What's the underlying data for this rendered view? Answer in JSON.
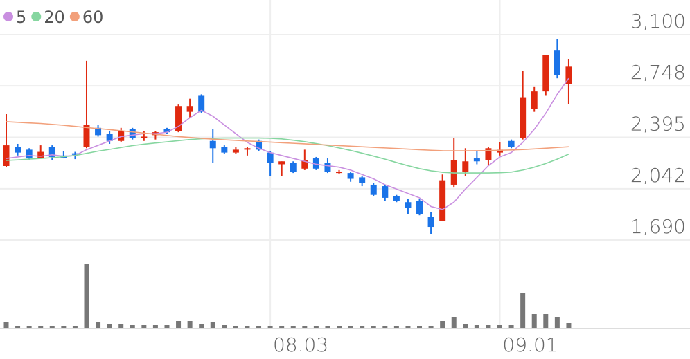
{
  "chart_data": {
    "type": "candlestick",
    "categories": [
      null,
      null,
      null,
      null,
      null,
      null,
      null,
      null,
      null,
      null,
      null,
      null,
      null,
      null,
      null,
      null,
      null,
      null,
      null,
      null,
      null,
      null,
      null,
      "08.03",
      null,
      null,
      null,
      null,
      null,
      null,
      null,
      null,
      null,
      null,
      null,
      null,
      null,
      null,
      null,
      null,
      null,
      null,
      null,
      "09.01",
      null,
      null,
      null,
      null,
      null,
      null
    ],
    "open": [
      2198,
      2330,
      2310,
      2255,
      2330,
      2270,
      2285,
      2330,
      2460,
      2420,
      2370,
      2450,
      2390,
      2410,
      2450,
      2440,
      2570,
      2680,
      2370,
      2330,
      2290,
      2310,
      2370,
      2290,
      2210,
      2220,
      2180,
      2250,
      2220,
      2150,
      2150,
      2120,
      2070,
      2060,
      1990,
      1950,
      1960,
      1850,
      1820,
      2070,
      2160,
      2250,
      2240,
      2290,
      2370,
      2390,
      2590,
      2710,
      2990,
      2760
    ],
    "high": [
      2554,
      2350,
      2320,
      2340,
      2340,
      2300,
      2295,
      2920,
      2480,
      2440,
      2460,
      2460,
      2440,
      2440,
      2460,
      2620,
      2660,
      2690,
      2450,
      2340,
      2330,
      2330,
      2380,
      2300,
      2230,
      2230,
      2310,
      2260,
      2250,
      2170,
      2160,
      2130,
      2080,
      2070,
      2000,
      1970,
      1970,
      1880,
      2140,
      2390,
      2320,
      2300,
      2330,
      2360,
      2380,
      2850,
      2740,
      2960,
      3070,
      2934
    ],
    "low": [
      2189,
      2270,
      2240,
      2250,
      2240,
      2250,
      2245,
      2320,
      2400,
      2350,
      2360,
      2380,
      2370,
      2380,
      2420,
      2430,
      2530,
      2560,
      2220,
      2280,
      2280,
      2270,
      2300,
      2130,
      2130,
      2150,
      2170,
      2170,
      2150,
      2145,
      2090,
      2060,
      1990,
      1960,
      1950,
      1870,
      1860,
      1730,
      1820,
      2050,
      2130,
      2210,
      2200,
      2270,
      2320,
      2380,
      2570,
      2680,
      2800,
      2625
    ],
    "close": [
      2340,
      2290,
      2250,
      2295,
      2260,
      2255,
      2275,
      2480,
      2410,
      2370,
      2440,
      2390,
      2400,
      2430,
      2430,
      2610,
      2610,
      2570,
      2320,
      2290,
      2310,
      2320,
      2310,
      2220,
      2230,
      2160,
      2240,
      2180,
      2160,
      2160,
      2110,
      2080,
      2000,
      1980,
      1960,
      1910,
      1870,
      1780,
      2100,
      2240,
      2230,
      2230,
      2320,
      2310,
      2330,
      2670,
      2710,
      2960,
      2820,
      2880
    ],
    "volume": [
      8,
      3,
      3,
      3,
      3,
      3,
      3,
      93,
      8,
      5,
      5,
      4,
      4,
      4,
      4,
      10,
      10,
      6,
      9,
      4,
      3,
      3,
      3,
      3,
      3,
      3,
      3,
      3,
      3,
      3,
      3,
      3,
      3,
      3,
      3,
      3,
      3,
      3,
      10,
      15,
      5,
      4,
      4,
      4,
      4,
      50,
      20,
      20,
      15,
      7
    ],
    "up_color": "#e0290f",
    "down_color": "#1a73e8",
    "volume_color": "#777777",
    "series": [
      {
        "name": "5",
        "color": "#c98fe0",
        "values": [
          2250,
          2260,
          2270,
          2265,
          2275,
          2265,
          2270,
          2310,
          2340,
          2370,
          2400,
          2410,
          2420,
          2420,
          2430,
          2470,
          2530,
          2580,
          2540,
          2480,
          2420,
          2360,
          2320,
          2290,
          2270,
          2250,
          2230,
          2210,
          2200,
          2190,
          2170,
          2140,
          2110,
          2070,
          2040,
          2010,
          1980,
          1920,
          1900,
          1950,
          2040,
          2120,
          2200,
          2260,
          2290,
          2360,
          2450,
          2560,
          2690,
          2800
        ]
      },
      {
        "name": "20",
        "color": "#86d6a0",
        "values": [
          2236,
          2240,
          2245,
          2250,
          2255,
          2262,
          2270,
          2285,
          2300,
          2312,
          2325,
          2338,
          2348,
          2356,
          2364,
          2372,
          2380,
          2385,
          2388,
          2390,
          2390,
          2390,
          2390,
          2388,
          2384,
          2375,
          2365,
          2352,
          2338,
          2322,
          2305,
          2286,
          2266,
          2245,
          2222,
          2200,
          2180,
          2165,
          2155,
          2150,
          2150,
          2150,
          2150,
          2152,
          2156,
          2170,
          2190,
          2215,
          2245,
          2280
        ]
      },
      {
        "name": "60",
        "color": "#f2a07b",
        "values": [
          2502,
          2498,
          2494,
          2490,
          2484,
          2478,
          2470,
          2462,
          2455,
          2448,
          2440,
          2432,
          2424,
          2416,
          2408,
          2400,
          2394,
          2388,
          2382,
          2378,
          2374,
          2370,
          2366,
          2362,
          2358,
          2354,
          2350,
          2346,
          2342,
          2338,
          2334,
          2330,
          2326,
          2322,
          2318,
          2314,
          2310,
          2306,
          2303,
          2302,
          2302,
          2303,
          2304,
          2306,
          2308,
          2311,
          2315,
          2320,
          2325,
          2330
        ]
      }
    ],
    "ylim": [
      1690,
      3100
    ],
    "yticks": [
      {
        "value": 3100,
        "label": "3,100"
      },
      {
        "value": 2748,
        "label": "2,748"
      },
      {
        "value": 2395,
        "label": "2,395"
      },
      {
        "value": 2042,
        "label": "2,042"
      },
      {
        "value": 1690,
        "label": "1,690"
      }
    ],
    "grid": true
  }
}
